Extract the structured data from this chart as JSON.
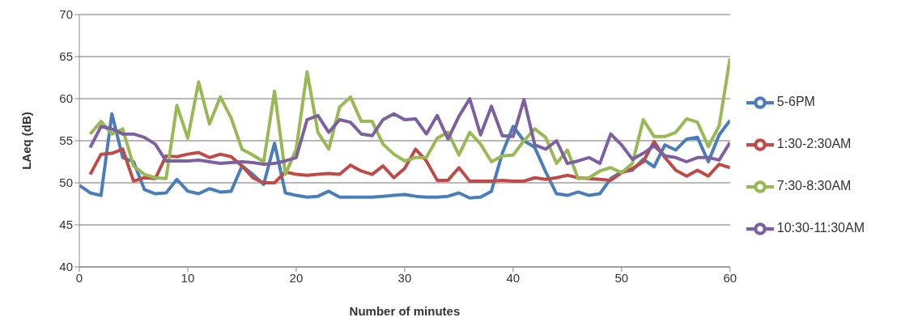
{
  "chart_data": {
    "type": "line",
    "xlabel": "Number of minutes",
    "ylabel": "LAeq (dB)",
    "xlim": [
      0,
      60
    ],
    "xticks": [
      0,
      10,
      20,
      30,
      40,
      50,
      60
    ],
    "ylim": [
      40,
      70
    ],
    "yticks": [
      40,
      45,
      50,
      55,
      60,
      65,
      70
    ],
    "grid": "y",
    "legend": "right",
    "marker": "none",
    "x": [
      0,
      1,
      2,
      3,
      4,
      5,
      6,
      7,
      8,
      9,
      10,
      11,
      12,
      13,
      14,
      15,
      16,
      17,
      18,
      19,
      20,
      21,
      22,
      23,
      24,
      25,
      26,
      27,
      28,
      29,
      30,
      31,
      32,
      33,
      34,
      35,
      36,
      37,
      38,
      39,
      40,
      41,
      42,
      43,
      44,
      45,
      46,
      47,
      48,
      49,
      50,
      51,
      52,
      53,
      54,
      55,
      56,
      57,
      58,
      59,
      60
    ],
    "series": [
      {
        "name": "5-6PM",
        "color": "#4a7ebb",
        "values": [
          49.7,
          48.8,
          48.5,
          58.2,
          53,
          52.5,
          49.2,
          48.7,
          48.8,
          50.4,
          49,
          48.7,
          49.3,
          48.9,
          49,
          52,
          51,
          49.8,
          54.7,
          48.8,
          48.5,
          48.3,
          48.4,
          49,
          48.3,
          48.3,
          48.3,
          48.3,
          48.4,
          48.5,
          48.6,
          48.4,
          48.3,
          48.3,
          48.4,
          48.8,
          48.2,
          48.3,
          49,
          53.5,
          56.7,
          55,
          54.2,
          51.3,
          48.7,
          48.5,
          48.9,
          48.5,
          48.7,
          50.5,
          51.3,
          51.5,
          52.8,
          51.9,
          54.5,
          53.9,
          55.2,
          55.4,
          52.5,
          55.7,
          57.4
        ]
      },
      {
        "name": "1:30-2:30AM",
        "color": "#be4b48",
        "values": [
          null,
          51,
          53.4,
          53.5,
          54,
          50.2,
          50.6,
          50.5,
          53.2,
          53.1,
          53.4,
          53.6,
          53,
          53.4,
          53.1,
          52,
          50.6,
          50,
          50,
          51.3,
          51,
          50.9,
          51,
          51.1,
          51,
          52.1,
          51.4,
          51,
          52,
          50.6,
          51.7,
          54,
          52.6,
          50.3,
          50.3,
          51.8,
          50.2,
          50.2,
          50.2,
          50.3,
          50.2,
          50.2,
          50.6,
          50.4,
          50.6,
          50.9,
          50.6,
          50.5,
          50.4,
          50.3,
          51.2,
          51.7,
          52.5,
          54.9,
          53,
          51.5,
          50.8,
          51.5,
          50.8,
          52.2,
          51.8
        ]
      },
      {
        "name": "7:30-8:30AM",
        "color": "#98b954",
        "values": [
          null,
          55.8,
          57.3,
          55.8,
          56.4,
          52,
          51,
          50.6,
          50.5,
          59.2,
          55.3,
          62,
          57,
          60.2,
          57.7,
          54,
          53.3,
          52.5,
          60.9,
          51,
          54,
          63.2,
          56,
          54,
          59,
          60.2,
          57.3,
          57.3,
          54.6,
          53.4,
          52.6,
          53,
          53,
          55.3,
          56,
          53.3,
          56,
          54.6,
          52.5,
          53.2,
          53.3,
          55,
          56.4,
          55.4,
          52.3,
          53.9,
          50.5,
          50.6,
          51.4,
          51.8,
          51.2,
          52.3,
          57.5,
          55.5,
          55.5,
          56,
          57.6,
          57.2,
          54.3,
          56.8,
          64.8
        ]
      },
      {
        "name": "10:30-11:30AM",
        "color": "#7d60a0",
        "values": [
          null,
          54.2,
          56.7,
          56.4,
          55.8,
          55.8,
          55.4,
          54.6,
          52.6,
          52.6,
          52.6,
          52.7,
          52.5,
          52.3,
          52.4,
          52.5,
          52.4,
          52.2,
          52.3,
          52.6,
          53,
          57.5,
          58,
          56,
          57.5,
          57.2,
          55.8,
          55.6,
          57.5,
          58.2,
          57.5,
          57.6,
          55.8,
          58,
          55.2,
          57.9,
          60,
          55.7,
          59.1,
          55.6,
          55.5,
          59.9,
          54.5,
          54,
          55,
          52.3,
          52.6,
          53,
          52.3,
          55.8,
          54.5,
          52.8,
          53.5,
          54.4,
          53.2,
          53,
          52.5,
          53,
          53,
          52.7,
          54.8
        ]
      }
    ]
  }
}
